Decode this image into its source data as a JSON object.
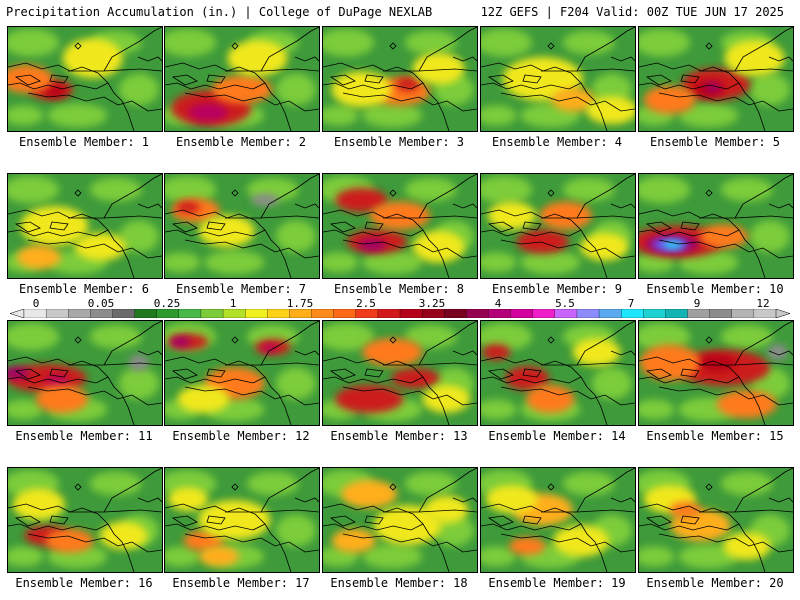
{
  "header": {
    "left": "Precipitation Accumulation (in.) | College of DuPage NEXLAB",
    "right": "12Z GEFS | F204 Valid: 00Z TUE JUN 17 2025"
  },
  "panels": [
    {
      "caption": "Ensemble Member: 1",
      "blobs": [
        [
          "#cc1a1a",
          0.28,
          0.6,
          22,
          10
        ],
        [
          "#b80018",
          0.3,
          0.62,
          12,
          6
        ],
        [
          "#ff7a1a",
          0.12,
          0.5,
          26,
          14
        ],
        [
          "#f0e81e",
          0.55,
          0.3,
          30,
          20
        ]
      ]
    },
    {
      "caption": "Ensemble Member: 2",
      "blobs": [
        [
          "#cc1a1a",
          0.3,
          0.78,
          40,
          18
        ],
        [
          "#b80060",
          0.28,
          0.82,
          20,
          9
        ],
        [
          "#ff7a1a",
          0.5,
          0.6,
          30,
          14
        ],
        [
          "#f0e81e",
          0.6,
          0.3,
          30,
          18
        ]
      ]
    },
    {
      "caption": "Ensemble Member: 3",
      "blobs": [
        [
          "#ff7a1a",
          0.5,
          0.62,
          30,
          14
        ],
        [
          "#cc1a1a",
          0.55,
          0.55,
          12,
          7
        ],
        [
          "#f0e81e",
          0.25,
          0.6,
          30,
          18
        ],
        [
          "#f0e81e",
          0.75,
          0.4,
          26,
          16
        ]
      ]
    },
    {
      "caption": "Ensemble Member: 4",
      "blobs": [
        [
          "#f0e81e",
          0.4,
          0.5,
          40,
          22
        ],
        [
          "#ffae1a",
          0.6,
          0.7,
          22,
          12
        ],
        [
          "#f0e81e",
          0.85,
          0.8,
          26,
          14
        ]
      ]
    },
    {
      "caption": "Ensemble Member: 5",
      "blobs": [
        [
          "#cc1a1a",
          0.5,
          0.55,
          34,
          16
        ],
        [
          "#b80018",
          0.45,
          0.6,
          16,
          8
        ],
        [
          "#a0006a",
          0.48,
          0.58,
          8,
          5
        ],
        [
          "#ff7a1a",
          0.2,
          0.7,
          26,
          14
        ],
        [
          "#f0e81e",
          0.75,
          0.3,
          30,
          18
        ]
      ]
    },
    {
      "caption": "Ensemble Member: 6",
      "blobs": [
        [
          "#f0e81e",
          0.3,
          0.5,
          34,
          20
        ],
        [
          "#ffae1a",
          0.2,
          0.8,
          22,
          12
        ],
        [
          "#f0e81e",
          0.6,
          0.7,
          26,
          14
        ]
      ]
    },
    {
      "caption": "Ensemble Member: 7",
      "blobs": [
        [
          "#ff7a1a",
          0.2,
          0.35,
          24,
          12
        ],
        [
          "#cc1a1a",
          0.15,
          0.32,
          12,
          6
        ],
        [
          "#f0e81e",
          0.4,
          0.55,
          28,
          16
        ],
        [
          "#8c8c8c",
          0.65,
          0.25,
          14,
          6
        ]
      ]
    },
    {
      "caption": "Ensemble Member: 8",
      "blobs": [
        [
          "#cc1a1a",
          0.25,
          0.25,
          26,
          12
        ],
        [
          "#cc1a1a",
          0.35,
          0.65,
          30,
          12
        ],
        [
          "#a0006a",
          0.32,
          0.68,
          14,
          6
        ],
        [
          "#ff7a1a",
          0.5,
          0.4,
          30,
          14
        ],
        [
          "#f0e81e",
          0.75,
          0.7,
          26,
          16
        ]
      ]
    },
    {
      "caption": "Ensemble Member: 9",
      "blobs": [
        [
          "#cc1a1a",
          0.4,
          0.65,
          26,
          12
        ],
        [
          "#ff7a1a",
          0.55,
          0.4,
          26,
          14
        ],
        [
          "#f0e81e",
          0.2,
          0.4,
          24,
          14
        ],
        [
          "#f0e81e",
          0.8,
          0.7,
          24,
          14
        ]
      ]
    },
    {
      "caption": "Ensemble Member: 10",
      "blobs": [
        [
          "#cc1a1a",
          0.25,
          0.65,
          46,
          16
        ],
        [
          "#a0006a",
          0.22,
          0.67,
          28,
          9
        ],
        [
          "#6a5aff",
          0.2,
          0.68,
          18,
          6
        ],
        [
          "#20e0f0",
          0.22,
          0.68,
          10,
          4
        ],
        [
          "#ff7a1a",
          0.55,
          0.6,
          24,
          12
        ]
      ]
    },
    {
      "caption": "Ensemble Member: 11",
      "blobs": [
        [
          "#cc1a1a",
          0.25,
          0.55,
          40,
          14
        ],
        [
          "#a0006a",
          0.05,
          0.5,
          14,
          6
        ],
        [
          "#b80060",
          0.32,
          0.58,
          12,
          6
        ],
        [
          "#ff7a1a",
          0.35,
          0.75,
          26,
          14
        ],
        [
          "#8c8c8c",
          0.85,
          0.4,
          10,
          8
        ]
      ]
    },
    {
      "caption": "Ensemble Member: 12",
      "blobs": [
        [
          "#cc1a1a",
          0.15,
          0.2,
          20,
          8
        ],
        [
          "#a0006a",
          0.1,
          0.2,
          10,
          5
        ],
        [
          "#cc1a1a",
          0.7,
          0.25,
          18,
          8
        ],
        [
          "#b80060",
          0.68,
          0.26,
          8,
          4
        ],
        [
          "#ff7a1a",
          0.45,
          0.6,
          30,
          16
        ],
        [
          "#f0e81e",
          0.25,
          0.75,
          26,
          14
        ]
      ]
    },
    {
      "caption": "Ensemble Member: 13",
      "blobs": [
        [
          "#cc1a1a",
          0.3,
          0.75,
          34,
          14
        ],
        [
          "#cc1a1a",
          0.6,
          0.55,
          24,
          10
        ],
        [
          "#ff7a1a",
          0.45,
          0.3,
          30,
          14
        ],
        [
          "#f0e81e",
          0.8,
          0.75,
          24,
          14
        ]
      ]
    },
    {
      "caption": "Ensemble Member: 14",
      "blobs": [
        [
          "#cc1a1a",
          0.3,
          0.55,
          22,
          12
        ],
        [
          "#cc1a1a",
          0.1,
          0.3,
          14,
          8
        ],
        [
          "#ff7a1a",
          0.45,
          0.75,
          24,
          14
        ],
        [
          "#f0e81e",
          0.75,
          0.3,
          24,
          14
        ]
      ]
    },
    {
      "caption": "Ensemble Member: 15",
      "blobs": [
        [
          "#cc1a1a",
          0.55,
          0.45,
          46,
          18
        ],
        [
          "#b80018",
          0.5,
          0.4,
          20,
          8
        ],
        [
          "#ff7a1a",
          0.2,
          0.4,
          30,
          18
        ],
        [
          "#ff7a1a",
          0.7,
          0.8,
          30,
          14
        ],
        [
          "#8c8c8c",
          0.9,
          0.3,
          10,
          8
        ]
      ]
    },
    {
      "caption": "Ensemble Member: 16",
      "blobs": [
        [
          "#cc1a1a",
          0.25,
          0.65,
          22,
          10
        ],
        [
          "#ff7a1a",
          0.4,
          0.7,
          24,
          12
        ],
        [
          "#f0e81e",
          0.2,
          0.35,
          26,
          16
        ],
        [
          "#f0e81e",
          0.75,
          0.65,
          24,
          14
        ]
      ]
    },
    {
      "caption": "Ensemble Member: 17",
      "blobs": [
        [
          "#ff7a1a",
          0.25,
          0.7,
          20,
          10
        ],
        [
          "#f0e81e",
          0.45,
          0.5,
          36,
          20
        ],
        [
          "#f0e81e",
          0.15,
          0.3,
          20,
          12
        ],
        [
          "#ffae1a",
          0.35,
          0.85,
          20,
          10
        ]
      ]
    },
    {
      "caption": "Ensemble Member: 18",
      "blobs": [
        [
          "#ffae1a",
          0.3,
          0.25,
          28,
          14
        ],
        [
          "#f0e81e",
          0.55,
          0.55,
          34,
          20
        ],
        [
          "#ffae1a",
          0.2,
          0.7,
          22,
          12
        ],
        [
          "#f0e81e",
          0.8,
          0.4,
          22,
          14
        ]
      ]
    },
    {
      "caption": "Ensemble Member: 19",
      "blobs": [
        [
          "#ffae1a",
          0.4,
          0.4,
          30,
          16
        ],
        [
          "#f0e81e",
          0.2,
          0.3,
          26,
          14
        ],
        [
          "#f0e81e",
          0.65,
          0.7,
          28,
          16
        ],
        [
          "#ff7a1a",
          0.3,
          0.75,
          18,
          9
        ]
      ]
    },
    {
      "caption": "Ensemble Member: 20",
      "blobs": [
        [
          "#ffae1a",
          0.4,
          0.55,
          30,
          16
        ],
        [
          "#f0e81e",
          0.2,
          0.3,
          26,
          14
        ],
        [
          "#ff7a1a",
          0.3,
          0.4,
          16,
          8
        ],
        [
          "#f0e81e",
          0.7,
          0.75,
          24,
          14
        ]
      ]
    }
  ],
  "colorbar": {
    "ticks": [
      "0",
      "0.05",
      "0.25",
      "1",
      "1.75",
      "2.5",
      "3.25",
      "4",
      "5.5",
      "7",
      "9",
      "12"
    ],
    "colors": [
      "#e8e8e8",
      "#c8c8c8",
      "#a8a8a8",
      "#8c8c8c",
      "#6b6b6b",
      "#1f7a1f",
      "#2e9a2e",
      "#48b848",
      "#7ccc3a",
      "#b4e02a",
      "#f0f01e",
      "#ffd21a",
      "#ffae1a",
      "#ff8c1a",
      "#ff6a1a",
      "#f03c1a",
      "#d21a1a",
      "#b4001a",
      "#96001a",
      "#78001e",
      "#960050",
      "#b40078",
      "#d2009c",
      "#f01ec8",
      "#c864ff",
      "#8c8cff",
      "#5aaaf0",
      "#1ee6ff",
      "#1ed2d2",
      "#14b4b4",
      "#a0a0a0",
      "#8c8c8c",
      "#b4b4b4",
      "#c8c8c8"
    ]
  }
}
